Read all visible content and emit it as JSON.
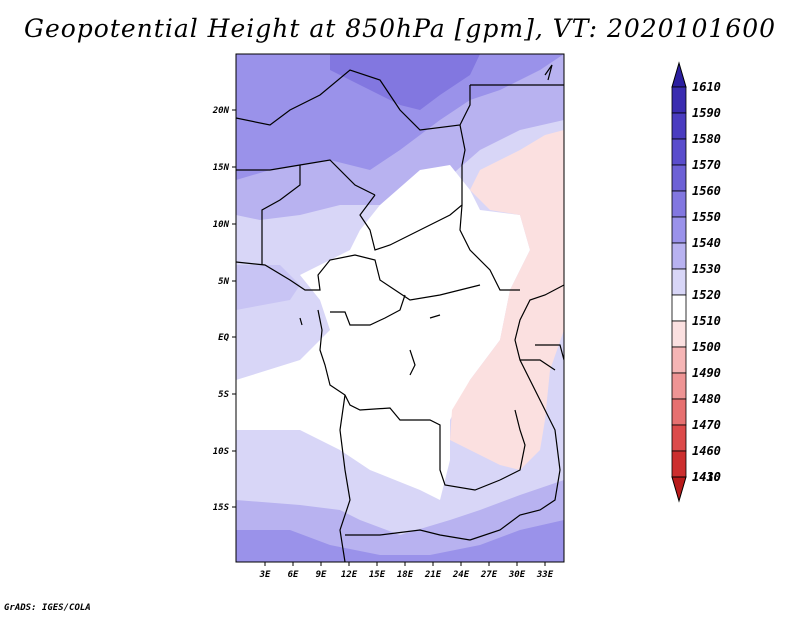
{
  "title": "Geopotential Height at 850hPa [gpm], VT: 2020101600",
  "credit": "GrADS: IGES/COLA",
  "map": {
    "variable": "Geopotential Height",
    "level": "850hPa",
    "units": "gpm",
    "valid_time": "2020101600",
    "lat_labels": [
      "20N",
      "15N",
      "10N",
      "5N",
      "EQ",
      "5S",
      "10S",
      "15S"
    ],
    "lon_labels": [
      "3E",
      "6E",
      "9E",
      "12E",
      "15E",
      "18E",
      "21E",
      "24E",
      "27E",
      "30E",
      "33E"
    ]
  },
  "colorbar": {
    "levels": [
      "1610",
      "1590",
      "1580",
      "1570",
      "1560",
      "1550",
      "1540",
      "1530",
      "1520",
      "1510",
      "1500",
      "1490",
      "1480",
      "1470",
      "1460",
      "1430",
      "1410"
    ],
    "colors": [
      "#2c1fa0",
      "#3a2cb0",
      "#4a3cc0",
      "#5a4dcc",
      "#6d61d6",
      "#8277e0",
      "#9a92ea",
      "#b8b2f0",
      "#d8d6f7",
      "#ffffff",
      "#fbe0e0",
      "#f5b5b5",
      "#ee9494",
      "#e67070",
      "#dc4a4a",
      "#cc2e2e",
      "#b81a1a"
    ]
  }
}
